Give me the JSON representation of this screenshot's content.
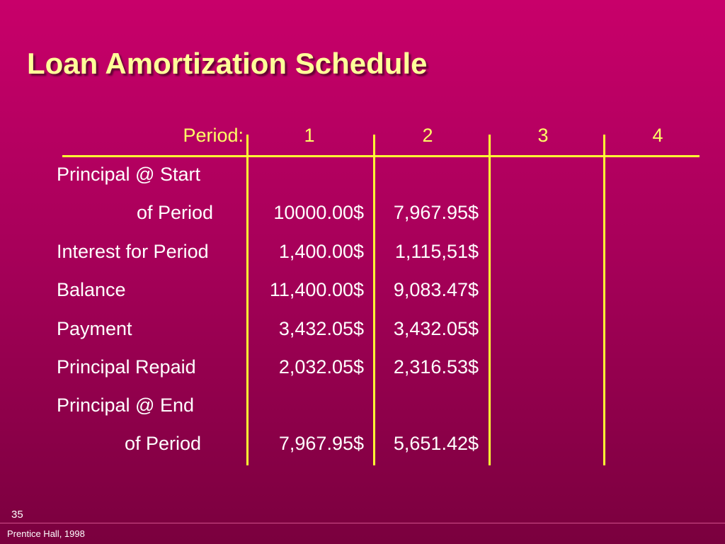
{
  "slide": {
    "title": "Loan Amortization Schedule",
    "number": "35",
    "credit": "Prentice Hall, 1998"
  },
  "table": {
    "period_label": "Period:",
    "periods": [
      "1",
      "2",
      "3",
      "4"
    ],
    "rows": [
      {
        "label": "Principal @ Start",
        "values": [
          "",
          "",
          "",
          ""
        ]
      },
      {
        "label": "of Period",
        "values": [
          "10000.00$",
          "7,967.95$",
          "",
          ""
        ]
      },
      {
        "label": "Interest for Period",
        "values": [
          "1,400.00$",
          "1,115,51$",
          "",
          ""
        ]
      },
      {
        "label": "Balance",
        "values": [
          "11,400.00$",
          "9,083.47$",
          "",
          ""
        ]
      },
      {
        "label": "Payment",
        "values": [
          "3,432.05$",
          "3,432.05$",
          "",
          ""
        ]
      },
      {
        "label": "Principal Repaid",
        "values": [
          "2,032.05$",
          "2,316.53$",
          "",
          ""
        ]
      },
      {
        "label": "Principal @ End",
        "values": [
          "",
          "",
          "",
          ""
        ]
      },
      {
        "label": "of Period",
        "values": [
          "7,967.95$",
          "5,651.42$",
          "",
          ""
        ]
      }
    ]
  },
  "colors": {
    "title": "#ffff99",
    "header": "#ffff66",
    "rules": "#ffff33",
    "body_text": "#ffffff",
    "background_top": "#c8006a",
    "background_bottom": "#7a003e"
  }
}
